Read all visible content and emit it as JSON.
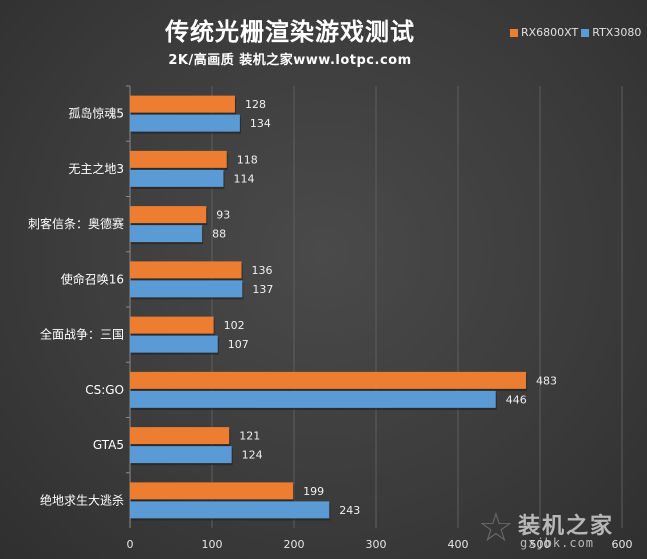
{
  "chart_data": {
    "type": "bar",
    "orientation": "horizontal",
    "title": "传统光栅渲染游戏测试",
    "subtitle": "2K/高画质  装机之家www.lotpc.com",
    "categories": [
      "孤岛惊魂5",
      "无主之地3",
      "刺客信条：奥德赛",
      "使命召唤16",
      "全面战争：三国",
      "CS:GO",
      "GTA5",
      "绝地求生大逃杀"
    ],
    "series": [
      {
        "name": "RX6800XT",
        "color": "#ed7d31",
        "values": [
          128,
          118,
          93,
          136,
          102,
          483,
          121,
          199
        ]
      },
      {
        "name": "RTX3080",
        "color": "#5b9bd5",
        "values": [
          134,
          114,
          88,
          137,
          107,
          446,
          124,
          243
        ]
      }
    ],
    "xlim": [
      0,
      600
    ],
    "xticks": [
      0,
      100,
      200,
      300,
      400,
      500,
      600
    ],
    "grid": true,
    "legend_position": "top-right"
  },
  "watermark": {
    "text": "装机之家",
    "url": "gxjbk.com"
  }
}
